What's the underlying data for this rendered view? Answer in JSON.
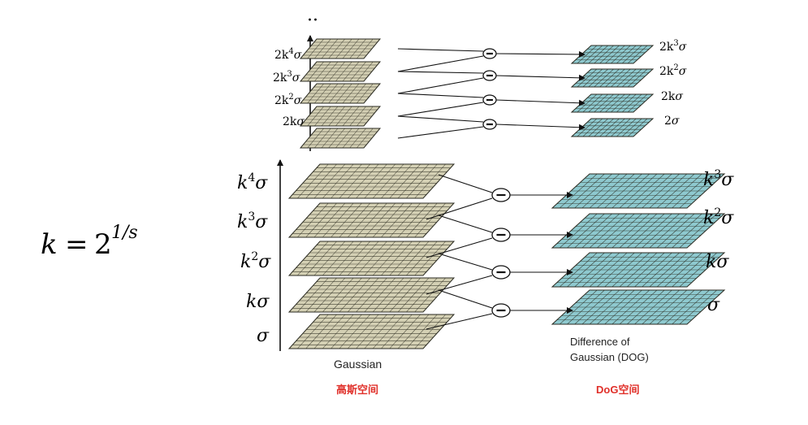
{
  "formula": {
    "lhs": "k",
    "eq": "=",
    "base": "2",
    "exp": "1/s"
  },
  "ellipsis": "··",
  "minus_symbol": "−",
  "octave2": {
    "gaussian_labels": [
      {
        "coef": "2k",
        "sup": "4",
        "sigma": "σ"
      },
      {
        "coef": "2k",
        "sup": "3",
        "sigma": "σ"
      },
      {
        "coef": "2k",
        "sup": "2",
        "sigma": "σ"
      },
      {
        "coef": "2k",
        "sup": "",
        "sigma": "σ"
      }
    ],
    "dog_labels": [
      {
        "coef": "2k",
        "sup": "3",
        "sigma": "σ"
      },
      {
        "coef": "2k",
        "sup": "2",
        "sigma": "σ"
      },
      {
        "coef": "2k",
        "sup": "",
        "sigma": "σ"
      },
      {
        "coef": "2",
        "sup": "",
        "sigma": "σ"
      }
    ]
  },
  "octave1": {
    "gaussian_labels": [
      {
        "coef": "k",
        "sup": "4",
        "sigma": "σ"
      },
      {
        "coef": "k",
        "sup": "3",
        "sigma": "σ"
      },
      {
        "coef": "k",
        "sup": "2",
        "sigma": "σ"
      },
      {
        "coef": "k",
        "sup": "",
        "sigma": "σ"
      },
      {
        "coef": "",
        "sup": "",
        "sigma": "σ"
      }
    ],
    "dog_labels": [
      {
        "coef": "k",
        "sup": "3",
        "sigma": "σ"
      },
      {
        "coef": "k",
        "sup": "2",
        "sigma": "σ"
      },
      {
        "coef": "k",
        "sup": "",
        "sigma": "σ"
      },
      {
        "coef": "",
        "sup": "",
        "sigma": "σ"
      }
    ],
    "gaussian_caption": "Gaussian",
    "dog_caption_line1": "Difference of",
    "dog_caption_line2": "Gaussian (DOG)"
  },
  "chinese_labels": {
    "gaussian": "高斯空间",
    "dog": "DoG空间"
  },
  "colors": {
    "gaussian_fill": "#d4d0b4",
    "dog_fill": "#8ec9cf",
    "grid_stroke": "#2a2a20",
    "red_label": "#e0302a",
    "line": "#111111"
  }
}
